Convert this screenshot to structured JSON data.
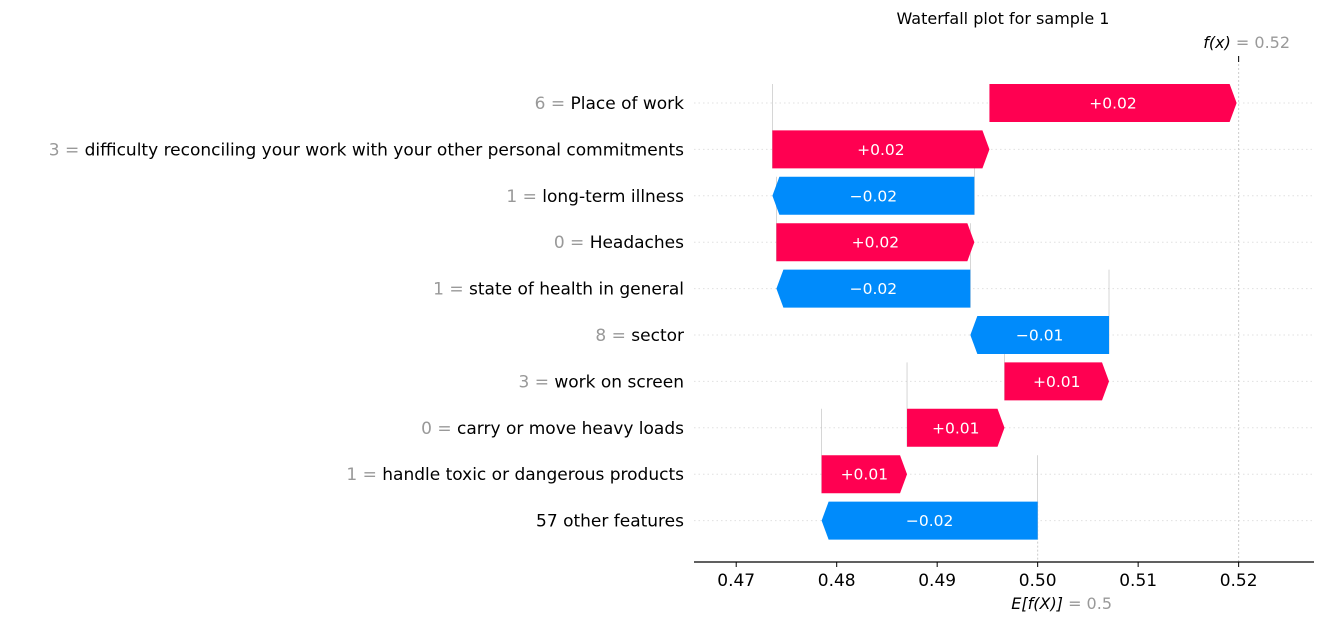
{
  "chart_data": {
    "type": "waterfall",
    "title": "Waterfall plot for sample 1",
    "base_value": 0.5,
    "base_label": "E[f(X)]",
    "base_value_label": "= 0.5",
    "output_value": 0.52,
    "output_label": "f(x)",
    "output_value_label": "= 0.52",
    "xlim": [
      0.4658,
      0.5275
    ],
    "xticks": [
      0.47,
      0.48,
      0.49,
      0.5,
      0.51,
      0.52
    ],
    "xtick_labels": [
      "0.47",
      "0.48",
      "0.49",
      "0.50",
      "0.51",
      "0.52"
    ],
    "grid": "horizontal dotted per row",
    "colors": {
      "positive": "#ff0051",
      "negative": "#008bfb",
      "value_text": "#999999",
      "axis": "#000000"
    },
    "rows": [
      {
        "value": "6",
        "feature": "Place of work",
        "start": 0.4952,
        "end": 0.5198,
        "label": "+0.02"
      },
      {
        "value": "3",
        "feature": "difficulty reconciling your work with your other personal commitments",
        "start": 0.4736,
        "end": 0.4952,
        "label": "+0.02"
      },
      {
        "value": "1",
        "feature": "long-term illness",
        "start": 0.4937,
        "end": 0.4736,
        "label": "−0.02"
      },
      {
        "value": "0",
        "feature": "Headaches",
        "start": 0.474,
        "end": 0.4937,
        "label": "+0.02"
      },
      {
        "value": "1",
        "feature": "state of health in general",
        "start": 0.4933,
        "end": 0.474,
        "label": "−0.02"
      },
      {
        "value": "8",
        "feature": "sector",
        "start": 0.5071,
        "end": 0.4933,
        "label": "−0.01"
      },
      {
        "value": "3",
        "feature": "work on screen",
        "start": 0.4967,
        "end": 0.5071,
        "label": "+0.01"
      },
      {
        "value": "0",
        "feature": "carry or move heavy loads",
        "start": 0.487,
        "end": 0.4967,
        "label": "+0.01"
      },
      {
        "value": "1",
        "feature": "handle toxic or dangerous products",
        "start": 0.4785,
        "end": 0.487,
        "label": "+0.01"
      },
      {
        "value": "",
        "feature": "57 other features",
        "start": 0.5,
        "end": 0.4785,
        "label": "−0.02"
      }
    ]
  }
}
